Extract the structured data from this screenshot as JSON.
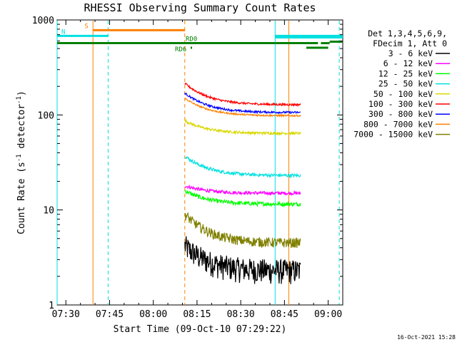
{
  "chart_data": {
    "type": "line",
    "title": "RHESSI Observing Summary Count Rates",
    "xlabel": "Start Time (09-Oct-10 07:29:22)",
    "ylabel_main": "Count Rate (s",
    "ylabel_sup": "-1",
    "ylabel_rest": " detector",
    "ylabel_sup2": "-1",
    "ylabel_end": ")",
    "x_ticks": [
      "07:30",
      "07:45",
      "08:00",
      "08:15",
      "08:30",
      "08:45",
      "09:00"
    ],
    "y_ticks": [
      "1",
      "10",
      "100",
      "1000"
    ],
    "y_scale": "log",
    "ylim": [
      1,
      1000
    ],
    "x_range_minutes": [
      -3,
      95
    ],
    "legend_header": [
      "Det 1,3,4,5,6,9,",
      "FDecim 1, Att 0"
    ],
    "series": [
      {
        "name": "3 - 6 keV",
        "color": "#000000",
        "start": 40.8,
        "end": 80.5,
        "start_value": 4.2,
        "plateau": 2.3,
        "noise": 0.3
      },
      {
        "name": "6 - 12 keV",
        "color": "#ff00ff",
        "start": 40.8,
        "end": 80.5,
        "start_value": 18,
        "plateau": 15,
        "noise": 0.04
      },
      {
        "name": "12 - 25 keV",
        "color": "#00ff00",
        "start": 40.8,
        "end": 80.5,
        "start_value": 16,
        "plateau": 11.5,
        "noise": 0.05
      },
      {
        "name": "25 - 50 keV",
        "color": "#00e0e0",
        "start": 40.8,
        "end": 80.5,
        "start_value": 37,
        "plateau": 23,
        "noise": 0.04
      },
      {
        "name": "50 - 100 keV",
        "color": "#d8d800",
        "start": 40.8,
        "end": 80.5,
        "start_value": 87,
        "plateau": 64,
        "noise": 0.03
      },
      {
        "name": "100 - 300 keV",
        "color": "#ff0000",
        "start": 40.8,
        "end": 80.5,
        "start_value": 215,
        "plateau": 128,
        "noise": 0.025
      },
      {
        "name": "300 - 800 keV",
        "color": "#0000ff",
        "start": 40.8,
        "end": 80.5,
        "start_value": 170,
        "plateau": 106,
        "noise": 0.025
      },
      {
        "name": "800 - 7000 keV",
        "color": "#ff8000",
        "start": 40.8,
        "end": 80.5,
        "start_value": 150,
        "plateau": 98,
        "noise": 0.02
      },
      {
        "name": "7000 - 15000 keV",
        "color": "#808000",
        "start": 40.8,
        "end": 80.5,
        "start_value": 9,
        "plateau": 4.5,
        "noise": 0.12
      }
    ],
    "flags": [
      {
        "label": "S",
        "color": "#ff8000",
        "x_start": 9.3,
        "x_end": 40.8,
        "level": 780
      },
      {
        "label": "N",
        "color": "#00e0e0",
        "x_start": -3,
        "x_end": 14.5,
        "level": 680
      },
      {
        "label": "",
        "color": "#00e0e0",
        "x_start": 71.8,
        "x_end": 95,
        "level": 680
      },
      {
        "label": "",
        "color": "#00e0e0",
        "x_start": 71.8,
        "x_end": 95,
        "level": 655
      },
      {
        "label": "RD0",
        "color": "#008000",
        "x_start": -3,
        "x_end": 71.8,
        "level": 570
      },
      {
        "label": "",
        "color": "#008000",
        "x_start": 71.8,
        "x_end": 86.5,
        "level": 570
      },
      {
        "label": "",
        "color": "#008000",
        "x_start": 87.5,
        "x_end": 90.5,
        "level": 570
      },
      {
        "label": "",
        "color": "#008000",
        "x_start": 90.5,
        "x_end": 95,
        "level": 590
      },
      {
        "label": "",
        "color": "#008000",
        "x_start": 82.5,
        "x_end": 90,
        "level": 510
      },
      {
        "label": "RD6",
        "color": "#008000",
        "x_start": 42.8,
        "x_end": 43.3,
        "level": 510
      }
    ],
    "vertical_markers": [
      {
        "x": -3,
        "color": "#00e0e0",
        "style": "solid"
      },
      {
        "x": 9.3,
        "color": "#ff8000",
        "style": "solid"
      },
      {
        "x": 14.5,
        "color": "#00e0e0",
        "style": "dashed"
      },
      {
        "x": 40.8,
        "color": "#ff8000",
        "style": "dashed"
      },
      {
        "x": 71.8,
        "color": "#00e0e0",
        "style": "solid"
      },
      {
        "x": 76.5,
        "color": "#ff8000",
        "style": "solid"
      },
      {
        "x": 93.8,
        "color": "#00e0e0",
        "style": "dashed"
      }
    ],
    "grid": false,
    "legend_position": "right"
  },
  "timestamp": "16-Oct-2021 15:28"
}
